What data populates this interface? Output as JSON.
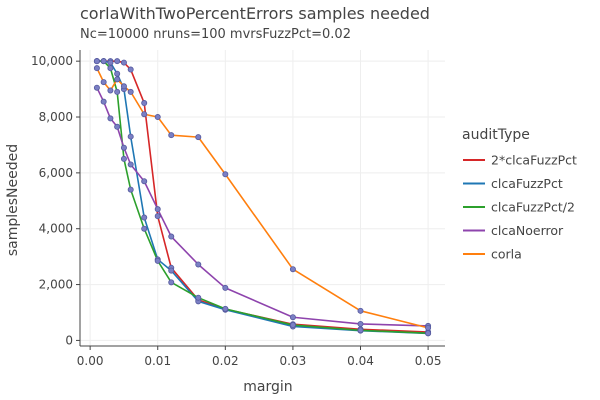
{
  "chart_data": {
    "type": "line",
    "title": "corlaWithTwoPercentErrors samples needed",
    "subtitle": "Nc=10000 nruns=100 mvrsFuzzPct=0.02",
    "xlabel": "margin",
    "ylabel": "samplesNeeded",
    "xlim": [
      -0.0015,
      0.0525
    ],
    "ylim": [
      -200,
      10400
    ],
    "xticks": [
      0,
      0.01,
      0.02,
      0.03,
      0.04,
      0.05
    ],
    "xtick_labels": [
      "0.00",
      "0.01",
      "0.02",
      "0.03",
      "0.04",
      "0.05"
    ],
    "yticks": [
      0,
      2000,
      4000,
      6000,
      8000,
      10000
    ],
    "ytick_labels": [
      "0",
      "2,000",
      "4,000",
      "6,000",
      "8,000",
      "10,000"
    ],
    "grid": true,
    "legend_title": "auditType",
    "legend_position": "right",
    "series": [
      {
        "name": "2*clcaFuzzPct",
        "color": "#d62728",
        "x": [
          0.001,
          0.002,
          0.003,
          0.004,
          0.005,
          0.006,
          0.008,
          0.01,
          0.012,
          0.016,
          0.02,
          0.03,
          0.04,
          0.05
        ],
        "y": [
          10000,
          10000,
          10000,
          10000,
          9950,
          9700,
          8500,
          4450,
          2600,
          1450,
          1120,
          580,
          400,
          300
        ]
      },
      {
        "name": "clcaFuzzPct",
        "color": "#1f77b4",
        "x": [
          0.001,
          0.002,
          0.003,
          0.004,
          0.005,
          0.006,
          0.008,
          0.01,
          0.012,
          0.016,
          0.02,
          0.03,
          0.04,
          0.05
        ],
        "y": [
          10000,
          10000,
          9950,
          9550,
          9000,
          7300,
          4400,
          2900,
          2500,
          1400,
          1100,
          500,
          350,
          250
        ]
      },
      {
        "name": "clcaFuzzPct/2",
        "color": "#2ca02c",
        "x": [
          0.001,
          0.002,
          0.003,
          0.004,
          0.005,
          0.006,
          0.008,
          0.01,
          0.012,
          0.016,
          0.02,
          0.03,
          0.04,
          0.05
        ],
        "y": [
          10000,
          10000,
          9750,
          8900,
          6500,
          5400,
          4000,
          2850,
          2080,
          1530,
          1130,
          550,
          360,
          260
        ]
      },
      {
        "name": "clcaNoerror",
        "color": "#8e44ad",
        "x": [
          0.001,
          0.002,
          0.003,
          0.004,
          0.005,
          0.006,
          0.008,
          0.01,
          0.012,
          0.016,
          0.02,
          0.03,
          0.04,
          0.05
        ],
        "y": [
          9050,
          8550,
          7950,
          7650,
          6900,
          6300,
          5700,
          4700,
          3720,
          2720,
          1880,
          830,
          590,
          520
        ]
      },
      {
        "name": "corla",
        "color": "#ff7f0e",
        "x": [
          0.001,
          0.002,
          0.003,
          0.004,
          0.005,
          0.006,
          0.008,
          0.01,
          0.012,
          0.016,
          0.02,
          0.03,
          0.04,
          0.05
        ],
        "y": [
          9750,
          9250,
          8950,
          9350,
          9100,
          8900,
          8100,
          8000,
          7350,
          7280,
          5950,
          2550,
          1060,
          450
        ]
      }
    ]
  }
}
